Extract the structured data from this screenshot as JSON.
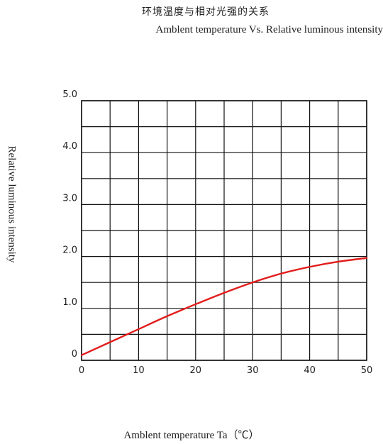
{
  "chart_data": {
    "type": "line",
    "title": "环境温度与相对光强的关系",
    "subtitle": "Amblent temperature  Vs.  Relative luminous intensity",
    "xlabel": "Amblent temperature Ta（℃）",
    "ylabel": "Relative luminous intensity",
    "xlim": [
      0,
      50
    ],
    "ylim": [
      0,
      5.0
    ],
    "x_ticks": [
      "0",
      "10",
      "20",
      "30",
      "40",
      "50"
    ],
    "y_ticks": [
      "0",
      "1.0",
      "2.0",
      "3.0",
      "4.0",
      "5.0"
    ],
    "grid": true,
    "series": [
      {
        "color": "#e31b1b",
        "x": [
          0,
          5,
          10,
          15,
          20,
          25,
          30,
          35,
          40,
          45,
          50
        ],
        "y": [
          0.1,
          0.35,
          0.6,
          0.85,
          1.08,
          1.3,
          1.5,
          1.67,
          1.8,
          1.9,
          1.97
        ]
      }
    ]
  }
}
